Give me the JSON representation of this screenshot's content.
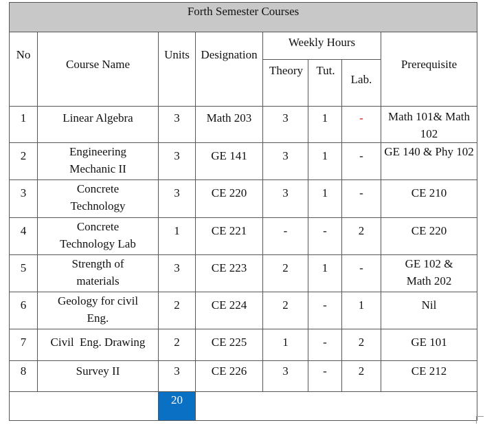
{
  "title": "Forth Semester Courses",
  "headers": {
    "no": "No",
    "course_name": "Course Name",
    "units": "Units",
    "designation": "Designation",
    "weekly_hours": "Weekly Hours",
    "theory": "Theory",
    "tut": "Tut.",
    "lab": "Lab.",
    "prerequisite": "Prerequisite"
  },
  "rows": [
    {
      "no": "1",
      "name": "Linear Algebra",
      "units": "3",
      "designation": "Math 203",
      "theory": "3",
      "tut": "1",
      "lab": "-",
      "prerequisite": "Math 101& Math 102"
    },
    {
      "no": "2",
      "name": "Engineering Mechanic II",
      "units": "3",
      "designation": "GE 141",
      "theory": "3",
      "tut": "1",
      "lab": "-",
      "prerequisite": "GE 140 & Phy 102"
    },
    {
      "no": "3",
      "name": "Concrete Technology",
      "units": "3",
      "designation": "CE 220",
      "theory": "3",
      "tut": "1",
      "lab": "-",
      "prerequisite": "CE 210"
    },
    {
      "no": "4",
      "name": "Concrete Technology Lab",
      "units": "1",
      "designation": "CE 221",
      "theory": "-",
      "tut": "-",
      "lab": "2",
      "prerequisite": "CE 220"
    },
    {
      "no": "5",
      "name": "Strength of materials",
      "units": "3",
      "designation": "CE 223",
      "theory": "2",
      "tut": "1",
      "lab": "-",
      "prerequisite": "GE 102 & Math 202"
    },
    {
      "no": "6",
      "name": "Geology for civil Eng.",
      "units": "2",
      "designation": "CE 224",
      "theory": "2",
      "tut": "-",
      "lab": "1",
      "prerequisite": "Nil"
    },
    {
      "no": "7",
      "name": "Civil  Eng. Drawing",
      "units": "2",
      "designation": "CE 225",
      "theory": "1",
      "tut": "-",
      "lab": "2",
      "prerequisite": "GE 101"
    },
    {
      "no": "8",
      "name": "Survey II",
      "units": "3",
      "designation": "CE 226",
      "theory": "3",
      "tut": "-",
      "lab": "2",
      "prerequisite": "CE 212"
    }
  ],
  "total_units": "20",
  "colors": {
    "title_bg": "#c8c8c8",
    "total_bg": "#0a70c4",
    "dash_red": "#d01010"
  }
}
